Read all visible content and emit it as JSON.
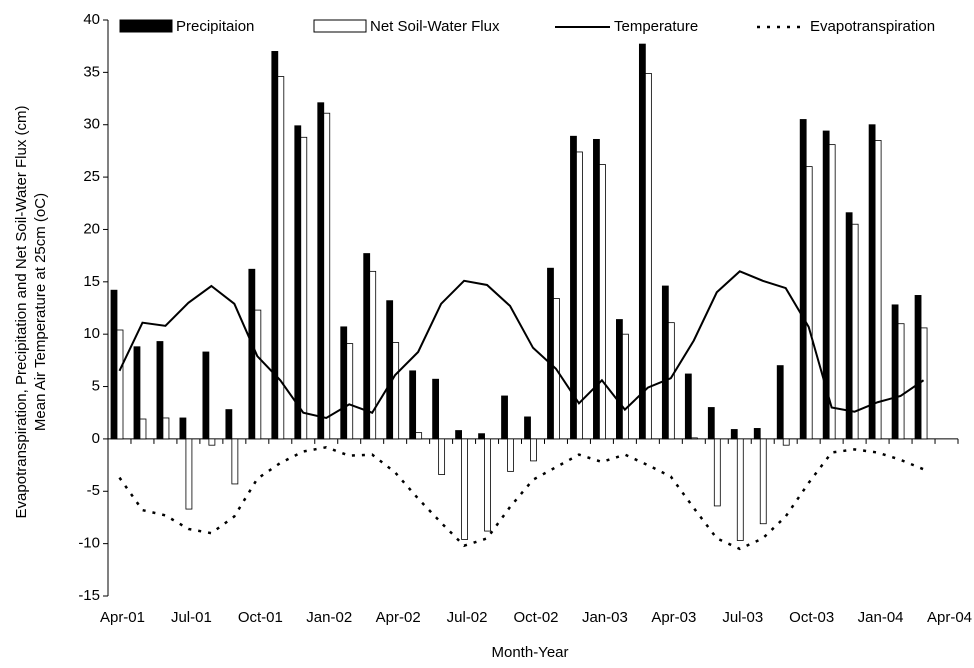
{
  "chart_data": {
    "type": "bar",
    "x_label": "Month-Year",
    "y_label": [
      "Evapotranspiration, Precipitation and Net Soil-Water Flux (cm)",
      "Mean Air Temperature at 25cm (oC)"
    ],
    "categories": [
      "Apr-01",
      null,
      null,
      "Jul-01",
      null,
      null,
      "Oct-01",
      null,
      null,
      "Jan-02",
      null,
      null,
      "Apr-02",
      null,
      null,
      "Jul-02",
      null,
      null,
      "Oct-02",
      null,
      null,
      "Jan-03",
      null,
      null,
      "Apr-03",
      null,
      null,
      "Jul-03",
      null,
      null,
      "Oct-03",
      null,
      null,
      "Jan-04",
      null,
      null,
      "Apr-04"
    ],
    "ylim": [
      -15,
      40
    ],
    "yticks": [
      -15,
      -10,
      -5,
      0,
      5,
      10,
      15,
      20,
      25,
      30,
      35,
      40
    ],
    "series": [
      {
        "name": "Precipitaion",
        "type": "bar",
        "color": "#000000",
        "values": [
          14.2,
          8.8,
          9.3,
          2.0,
          8.3,
          2.8,
          16.2,
          37.0,
          29.9,
          32.1,
          10.7,
          17.7,
          13.2,
          6.5,
          5.7,
          0.8,
          0.5,
          4.1,
          2.1,
          16.3,
          28.9,
          28.6,
          11.4,
          37.7,
          14.6,
          6.2,
          3.0,
          0.9,
          1.0,
          7.0,
          30.5,
          29.4,
          21.6,
          30.0,
          12.8,
          13.7,
          null
        ]
      },
      {
        "name": "Net Soil-Water Flux",
        "type": "bar",
        "color": "#ffffff",
        "values": [
          10.4,
          1.9,
          2.0,
          -6.7,
          -0.6,
          -4.3,
          12.3,
          34.6,
          28.8,
          31.1,
          9.1,
          16.0,
          9.2,
          0.6,
          -3.4,
          -9.6,
          -8.8,
          -3.1,
          -2.1,
          13.4,
          27.4,
          26.2,
          10.0,
          34.9,
          11.1,
          0.1,
          -6.4,
          -9.7,
          -8.1,
          -0.6,
          26.0,
          28.1,
          20.5,
          28.5,
          11.0,
          10.6,
          null
        ]
      },
      {
        "name": "Temperature",
        "type": "line",
        "color": "#000000",
        "values": [
          6.5,
          11.1,
          10.8,
          13.0,
          14.6,
          12.9,
          7.9,
          5.6,
          2.5,
          2.0,
          3.3,
          2.5,
          6.1,
          8.3,
          12.9,
          15.1,
          14.7,
          12.7,
          8.7,
          6.7,
          3.4,
          5.6,
          2.8,
          4.9,
          5.8,
          9.4,
          14.0,
          16.0,
          15.1,
          14.4,
          10.7,
          3.0,
          2.6,
          3.5,
          4.1,
          5.6,
          null
        ]
      },
      {
        "name": "Evapotranspiration",
        "type": "dotted",
        "color": "#000000",
        "values": [
          -3.7,
          -6.8,
          -7.3,
          -8.6,
          -9.0,
          -7.4,
          -3.8,
          -2.3,
          -1.2,
          -0.8,
          -1.6,
          -1.5,
          -3.2,
          -5.7,
          -8.0,
          -10.2,
          -9.5,
          -6.5,
          -3.9,
          -2.7,
          -1.5,
          -2.2,
          -1.5,
          -2.5,
          -3.6,
          -6.6,
          -9.5,
          -10.5,
          -9.5,
          -7.4,
          -4.2,
          -1.3,
          -1.0,
          -1.3,
          -2.0,
          -2.9,
          null
        ]
      }
    ]
  }
}
